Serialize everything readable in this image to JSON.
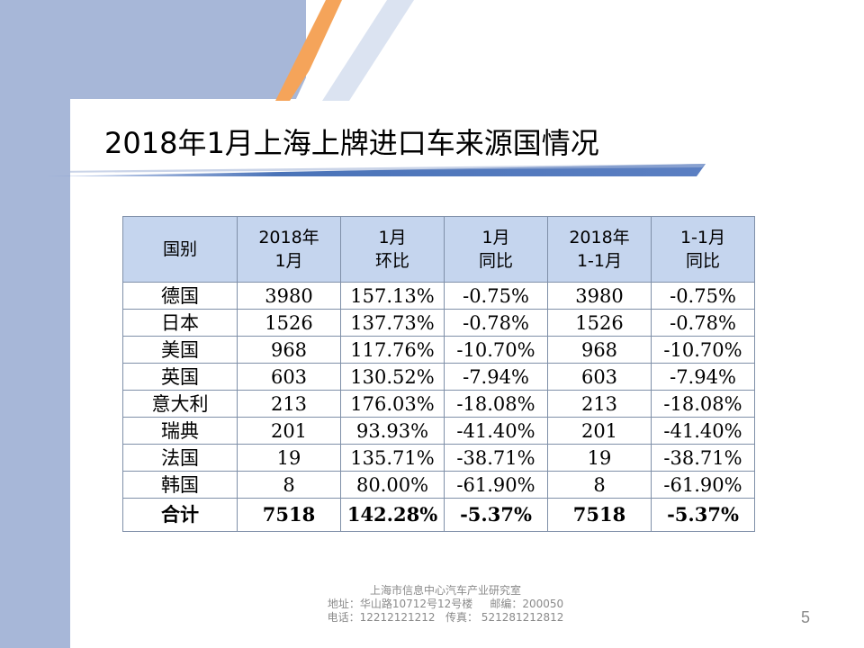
{
  "title": "2018年1月上海上牌进口车来源国情况",
  "table": {
    "headers": [
      [
        "国别"
      ],
      [
        "2018年",
        "1月"
      ],
      [
        "1月",
        "环比"
      ],
      [
        "1月",
        "同比"
      ],
      [
        "2018年",
        "1-1月"
      ],
      [
        "1-1月",
        "同比"
      ]
    ],
    "rows": [
      [
        "德国",
        "3980",
        "157.13%",
        "-0.75%",
        "3980",
        "-0.75%"
      ],
      [
        "日本",
        "1526",
        "137.73%",
        "-0.78%",
        "1526",
        "-0.78%"
      ],
      [
        "美国",
        "968",
        "117.76%",
        "-10.70%",
        "968",
        "-10.70%"
      ],
      [
        "英国",
        "603",
        "130.52%",
        "-7.94%",
        "603",
        "-7.94%"
      ],
      [
        "意大利",
        "213",
        "176.03%",
        "-18.08%",
        "213",
        "-18.08%"
      ],
      [
        "瑞典",
        "201",
        "93.93%",
        "-41.40%",
        "201",
        "-41.40%"
      ],
      [
        "法国",
        "19",
        "135.71%",
        "-38.71%",
        "19",
        "-38.71%"
      ],
      [
        "韩国",
        "8",
        "80.00%",
        "-61.90%",
        "8",
        "-61.90%"
      ]
    ],
    "total": [
      "合计",
      "7518",
      "142.28%",
      "-5.37%",
      "7518",
      "-5.37%"
    ]
  },
  "footer": {
    "line1": "上海市信息中心汽车产业研究室",
    "line2": "地址：华山路10712号12号楼     邮编：200050",
    "line3": "电话：12212121212   传真： 521281212812"
  },
  "page_number": "5",
  "colors": {
    "side_band": "#a7b7d8",
    "header_fill": "#c5d5ee",
    "accent_orange": "#f5a45a",
    "accent_blue": "#4a73b8"
  }
}
